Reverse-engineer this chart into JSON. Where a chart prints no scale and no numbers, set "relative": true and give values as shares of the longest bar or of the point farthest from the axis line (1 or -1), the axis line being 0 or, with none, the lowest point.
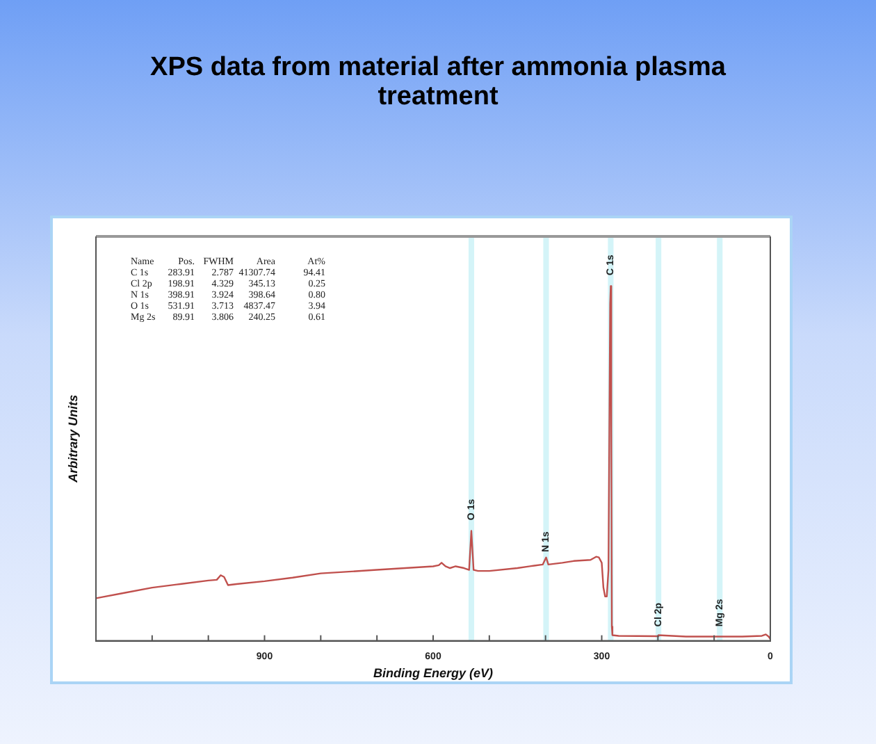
{
  "chart_data": {
    "type": "line",
    "title": "XPS data from material after ammonia plasma treatment",
    "xlabel": "Binding Energy (eV)",
    "ylabel": "Arbitrary Units",
    "relative": true,
    "legend": false,
    "grid": false,
    "marker": "none",
    "xlim": [
      1200,
      0
    ],
    "xticks": [
      {
        "value": 1200,
        "label": null
      },
      {
        "value": 1100,
        "label": null
      },
      {
        "value": 1000,
        "label": null
      },
      900,
      {
        "value": 800,
        "label": null
      },
      {
        "value": 700,
        "label": null
      },
      600,
      {
        "value": 500,
        "label": null
      },
      {
        "value": 400,
        "label": null
      },
      300,
      {
        "value": 200,
        "label": null
      },
      {
        "value": 100,
        "label": null
      },
      0
    ],
    "x": [
      1200,
      1150,
      1100,
      1050,
      1000,
      985,
      978,
      972,
      965,
      950,
      900,
      850,
      800,
      750,
      700,
      650,
      600,
      590,
      585,
      578,
      570,
      560,
      545,
      536,
      532,
      528,
      520,
      500,
      450,
      420,
      405,
      399,
      395,
      370,
      350,
      320,
      310,
      305,
      300,
      297,
      294,
      291,
      288,
      285,
      284,
      283,
      282,
      281,
      270,
      200,
      199,
      150,
      90,
      50,
      15,
      8,
      3,
      0
    ],
    "series": [
      {
        "color": "#c0504d",
        "values": [
          0.12,
          0.135,
          0.15,
          0.16,
          0.17,
          0.172,
          0.185,
          0.18,
          0.157,
          0.16,
          0.168,
          0.178,
          0.19,
          0.195,
          0.2,
          0.205,
          0.21,
          0.213,
          0.22,
          0.21,
          0.205,
          0.21,
          0.205,
          0.2,
          0.31,
          0.2,
          0.197,
          0.197,
          0.205,
          0.212,
          0.215,
          0.235,
          0.215,
          0.22,
          0.225,
          0.228,
          0.237,
          0.235,
          0.22,
          0.15,
          0.125,
          0.125,
          0.2,
          0.95,
          1,
          0.6,
          0.04,
          0.016,
          0.014,
          0.013,
          0.016,
          0.012,
          0.012,
          0.012,
          0.014,
          0.018,
          0.012,
          0.005
        ]
      }
    ],
    "bands": [
      {
        "axis": "x",
        "from": 527,
        "to": 537,
        "color": "#d4f4f8"
      },
      {
        "axis": "x",
        "from": 394,
        "to": 404,
        "color": "#d4f4f8"
      },
      {
        "axis": "x",
        "from": 279,
        "to": 289,
        "color": "#d4f4f8"
      },
      {
        "axis": "x",
        "from": 194,
        "to": 204,
        "color": "#d4f4f8"
      },
      {
        "axis": "x",
        "from": 85,
        "to": 95,
        "color": "#d4f4f8"
      }
    ],
    "annotations": [
      {
        "text": "O 1s",
        "x": 532,
        "y": 0.34
      },
      {
        "text": "N 1s",
        "x": 399,
        "y": 0.25
      },
      {
        "text": "C 1s",
        "x": 284,
        "y": 1.03
      },
      {
        "text": "Cl 2p",
        "x": 199,
        "y": 0.04
      },
      {
        "text": "Mg 2s",
        "x": 90,
        "y": 0.04
      },
      "Name  Pos.  FWHM  Area  At%",
      "C 1s  283.91  2.787  41307.74  94.41",
      "Cl 2p  198.91  4.329  345.13  0.25",
      "N 1s  398.91  3.924  398.64  0.80",
      "O 1s  531.91  3.713  4837.47  3.94",
      "Mg 2s  89.91  3.806  240.25  0.61"
    ]
  }
}
